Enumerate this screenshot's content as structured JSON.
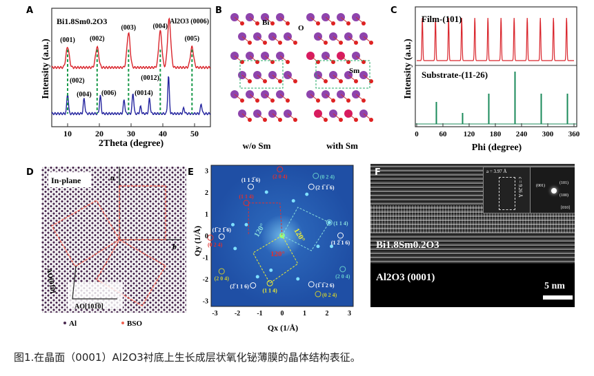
{
  "panels": {
    "A": "A",
    "B": "B",
    "C": "C",
    "D": "D",
    "E": "E",
    "F": "F"
  },
  "chart_data": [
    {
      "type": "line",
      "title": "Bi1.8Sm0.2O3",
      "xlabel": "2Theta (degree)",
      "ylabel": "Intensity (a.u.)",
      "xlim": [
        5,
        55
      ],
      "xticks": [
        10,
        20,
        30,
        40,
        50
      ],
      "series": [
        {
          "name": "film",
          "color": "#d9232a",
          "peaks": [
            10,
            19.3,
            29.2,
            39.2,
            42,
            49.2
          ]
        },
        {
          "name": "reference",
          "color": "#23239e",
          "peaks": [
            10,
            15.2,
            20.3,
            27.8,
            30.6,
            33,
            35.8,
            41.8,
            46.6,
            52.1
          ]
        }
      ],
      "annotations": {
        "film": [
          "(001)",
          "(002)",
          "(003)",
          "(004)",
          "(005)"
        ],
        "substrate": "Al2O3 (0006)",
        "reference": [
          "(002)",
          "(004)",
          "(006)",
          "(0012)",
          "(0014)"
        ]
      },
      "dashed_lines": [
        10,
        19.3,
        29.2,
        39.2,
        49.2
      ]
    },
    {
      "type": "line",
      "xlabel": "Phi (degree)",
      "ylabel": "Intensity (a.u.)",
      "xlim": [
        0,
        360
      ],
      "xticks": [
        0,
        60,
        120,
        180,
        240,
        300,
        360
      ],
      "series": [
        {
          "name": "Film-(101)",
          "color": "#d9232a",
          "peaks": [
            13,
            43,
            73,
            103,
            133,
            163,
            193,
            223,
            253,
            283,
            313,
            343
          ]
        },
        {
          "name": "Substrate-(11-26)",
          "color": "#1a8a5a",
          "peaks": [
            45,
            105,
            165,
            225,
            285,
            345
          ],
          "heights": [
            0.4,
            0.2,
            0.55,
            0.95,
            0.55,
            0.55
          ]
        }
      ]
    }
  ],
  "B": {
    "bi": "Bi",
    "o": "O",
    "sm": "Sm",
    "left": "w/o Sm",
    "right": "with Sm"
  },
  "D": {
    "title": "In-plane",
    "a": "a",
    "b": "b",
    "ax1": "AO[01̅0]",
    "ax2": "AO[101̅0]",
    "legend_al": "Al",
    "legend_bso": "BSO"
  },
  "E": {
    "xlabel": "Qx (1/Å)",
    "ylabel": "Qy (1/Å)",
    "ticks": [
      "-3",
      "-2",
      "-1",
      "0",
      "1",
      "2",
      "3"
    ],
    "spots": [
      [
        "(2 0 4)",
        -0.1,
        3.05,
        "#e03030"
      ],
      [
        "(0 2 4)",
        1.5,
        2.75,
        "#6cc"
      ],
      [
        "(1 1 2̅ 6)",
        -1.4,
        2.25,
        "#fff"
      ],
      [
        "(2 1̅ 1̅ 6)",
        1.3,
        2.25,
        "#fff"
      ],
      [
        "(1 1 4)",
        -1.6,
        1.5,
        "#e03030"
      ],
      [
        "(1̅ 2 1̅ 6)",
        -2.7,
        -0.05,
        "#fff"
      ],
      [
        "(0 2 4)",
        -3.2,
        -0.1,
        "#e03030"
      ],
      [
        "(1 1 4)",
        2.1,
        0.6,
        "#8dd"
      ],
      [
        "(1 2̅ 1 6)",
        2.6,
        0.0,
        "#fff"
      ],
      [
        "(2 0 4)",
        -2.7,
        -1.65,
        "#cc3"
      ],
      [
        "(2 0 4)",
        2.7,
        -1.55,
        "#6cc"
      ],
      [
        "(2̅ 1 1 6)",
        -1.3,
        -2.3,
        "#fff"
      ],
      [
        "(1 1 4)",
        -0.55,
        -2.2,
        "#ee3"
      ],
      [
        "(1̅ 1̅ 2 6)",
        1.3,
        -2.25,
        "#fff"
      ],
      [
        "(0 2 4)",
        1.6,
        -2.7,
        "#cc3"
      ]
    ],
    "angles": [
      "120°",
      "120°",
      "120°"
    ]
  },
  "F": {
    "film": "Bi1.8Sm0.2O3",
    "substrate": "Al2O3 (0001)",
    "scale": "5 nm",
    "inset_a": "a = 3.97 Å",
    "inset_c": "c = 9.26 Å",
    "fft": [
      "(001)",
      "(101)",
      "(100)",
      "[010]"
    ]
  },
  "caption": "图1.在晶面（0001）Al2O3衬底上生长成层状氧化铋薄膜的晶体结构表征。"
}
